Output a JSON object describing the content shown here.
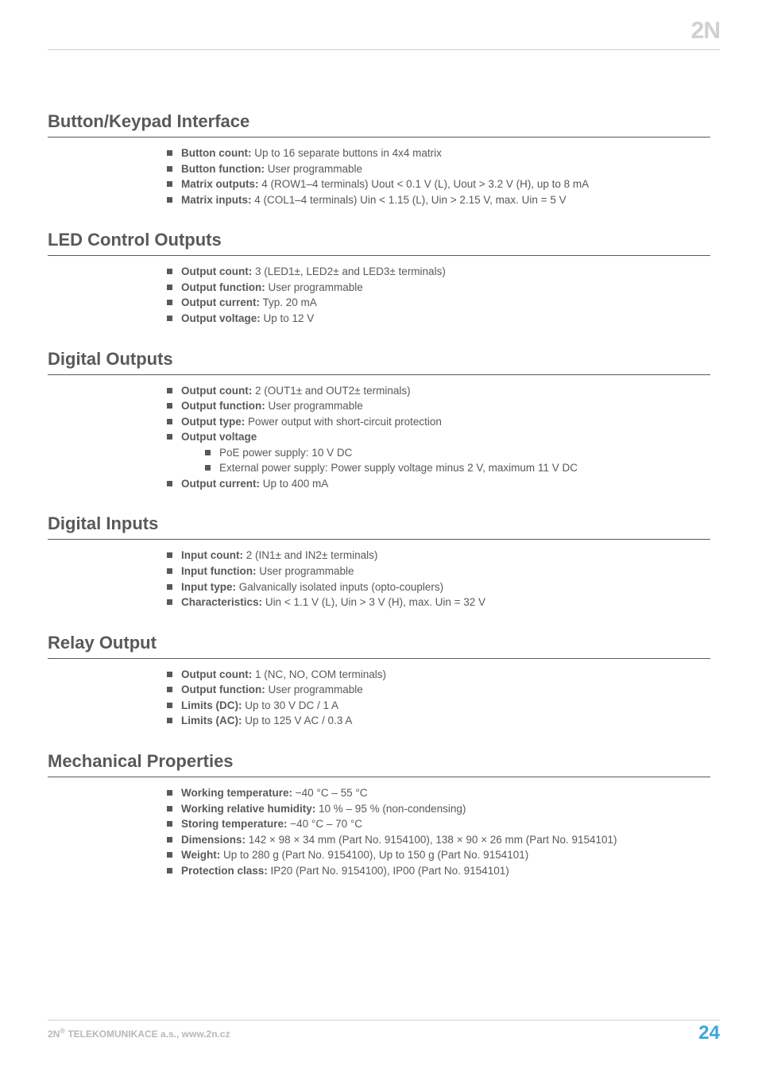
{
  "logo": "2N",
  "sections": [
    {
      "title": "Button/Keypad Interface",
      "items": [
        {
          "label": "Button count:",
          "text": " Up to 16 separate buttons in 4x4 matrix"
        },
        {
          "label": "Button function:",
          "text": " User programmable"
        },
        {
          "label": "Matrix outputs:",
          "text": " 4 (ROW1–4 terminals) Uout < 0.1 V (L), Uout > 3.2 V (H), up to 8 mA"
        },
        {
          "label": "Matrix inputs:",
          "text": " 4 (COL1–4 terminals) Uin < 1.15 (L), Uin > 2.15 V, max. Uin = 5 V"
        }
      ]
    },
    {
      "title": "LED Control Outputs",
      "items": [
        {
          "label": "Output count:",
          "text": " 3 (LED1±, LED2± and LED3± terminals)"
        },
        {
          "label": "Output function:",
          "text": " User programmable"
        },
        {
          "label": "Output current:",
          "text": " Typ. 20 mA"
        },
        {
          "label": "Output voltage:",
          "text": " Up to 12 V"
        }
      ]
    },
    {
      "title": "Digital Outputs",
      "items": [
        {
          "label": "Output count:",
          "text": " 2 (OUT1± and OUT2± terminals)"
        },
        {
          "label": "Output function:",
          "text": " User programmable"
        },
        {
          "label": "Output type:",
          "text": " Power output with short-circuit protection"
        },
        {
          "label": "Output voltage",
          "text": "",
          "sub": [
            {
              "text": "PoE power supply: 10 V DC"
            },
            {
              "text": "External power supply: Power supply voltage minus 2 V, maximum 11 V DC"
            }
          ]
        },
        {
          "label": "Output current:",
          "text": " Up to 400 mA"
        }
      ]
    },
    {
      "title": "Digital Inputs",
      "items": [
        {
          "label": "Input count:",
          "text": " 2 (IN1± and IN2± terminals)"
        },
        {
          "label": "Input function:",
          "text": " User programmable"
        },
        {
          "label": "Input type:",
          "text": " Galvanically isolated inputs (opto-couplers)"
        },
        {
          "label": "Characteristics:",
          "text": " Uin < 1.1 V (L), Uin > 3 V (H), max. Uin = 32 V"
        }
      ]
    },
    {
      "title": "Relay Output",
      "items": [
        {
          "label": "Output count:",
          "text": " 1 (NC, NO, COM terminals)"
        },
        {
          "label": "Output function:",
          "text": " User programmable"
        },
        {
          "label": "Limits (DC):",
          "text": " Up to 30 V DC / 1 A"
        },
        {
          "label": "Limits (AC):",
          "text": " Up to 125 V AC / 0.3 A"
        }
      ]
    },
    {
      "title": "Mechanical Properties",
      "items": [
        {
          "label": "Working temperature:",
          "text": " −40 °C – 55 °C"
        },
        {
          "label": "Working relative humidity:",
          "text": " 10 % – 95 % (non-condensing)"
        },
        {
          "label": "Storing temperature:",
          "text": " −40 °C – 70 °C"
        },
        {
          "label": "Dimensions:",
          "text": " 142 × 98 × 34 mm (Part No. 9154100), 138 × 90 × 26 mm (Part No. 9154101)"
        },
        {
          "label": "Weight:",
          "text": " Up to 280 g (Part No. 9154100), Up to 150 g (Part No. 9154101)"
        },
        {
          "label": "Protection class:",
          "text": " IP20 (Part No. 9154100), IP00 (Part No. 9154101)"
        }
      ]
    }
  ],
  "footer": {
    "company_prefix": "2N",
    "company_sup": "®",
    "company_rest": " TELEKOMUNIKACE a.s., www.2n.cz",
    "page": "24"
  }
}
